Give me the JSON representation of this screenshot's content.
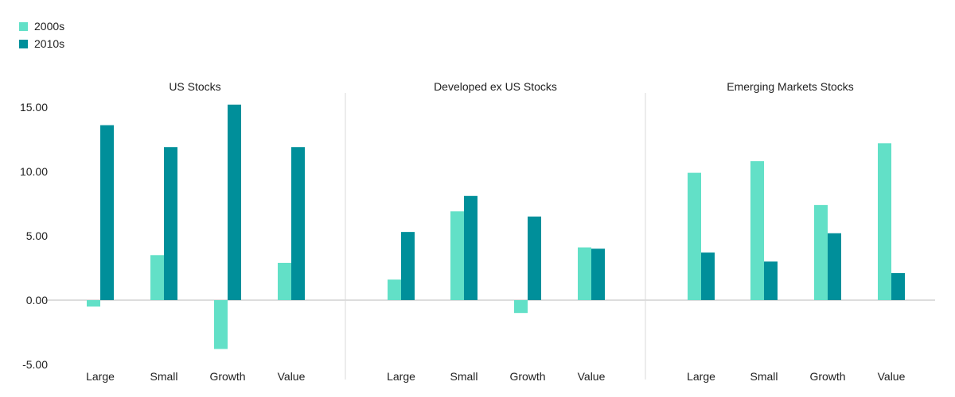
{
  "chart_data": {
    "type": "bar",
    "panels": [
      {
        "title": "US Stocks",
        "categories": [
          "Large",
          "Small",
          "Growth",
          "Value"
        ],
        "series": [
          {
            "name": "2000s",
            "values": [
              -0.5,
              3.5,
              -3.8,
              2.9
            ]
          },
          {
            "name": "2010s",
            "values": [
              13.6,
              11.9,
              15.2,
              11.9
            ]
          }
        ]
      },
      {
        "title": "Developed ex US Stocks",
        "categories": [
          "Large",
          "Small",
          "Growth",
          "Value"
        ],
        "series": [
          {
            "name": "2000s",
            "values": [
              1.6,
              6.9,
              -1.0,
              4.1
            ]
          },
          {
            "name": "2010s",
            "values": [
              5.3,
              8.1,
              6.5,
              4.0
            ]
          }
        ]
      },
      {
        "title": "Emerging Markets Stocks",
        "categories": [
          "Large",
          "Small",
          "Growth",
          "Value"
        ],
        "series": [
          {
            "name": "2000s",
            "values": [
              9.9,
              10.8,
              7.4,
              12.2
            ]
          },
          {
            "name": "2010s",
            "values": [
              3.7,
              3.0,
              5.2,
              2.1
            ]
          }
        ]
      }
    ],
    "ylim": [
      -5,
      15
    ],
    "yticks": [
      "15.00",
      "10.00",
      "5.00",
      "0.00",
      "-5.00"
    ],
    "ytick_values": [
      15,
      10,
      5,
      0,
      -5
    ],
    "legend": {
      "position": "top-left",
      "entries": [
        "2000s",
        "2010s"
      ]
    },
    "xlabel": "",
    "ylabel": "",
    "grid": false
  },
  "colors": {
    "series_2000s": "#62e0c7",
    "series_2010s": "#008f9a",
    "axis": "#bbbbbb",
    "divider": "#d9d9d9"
  }
}
